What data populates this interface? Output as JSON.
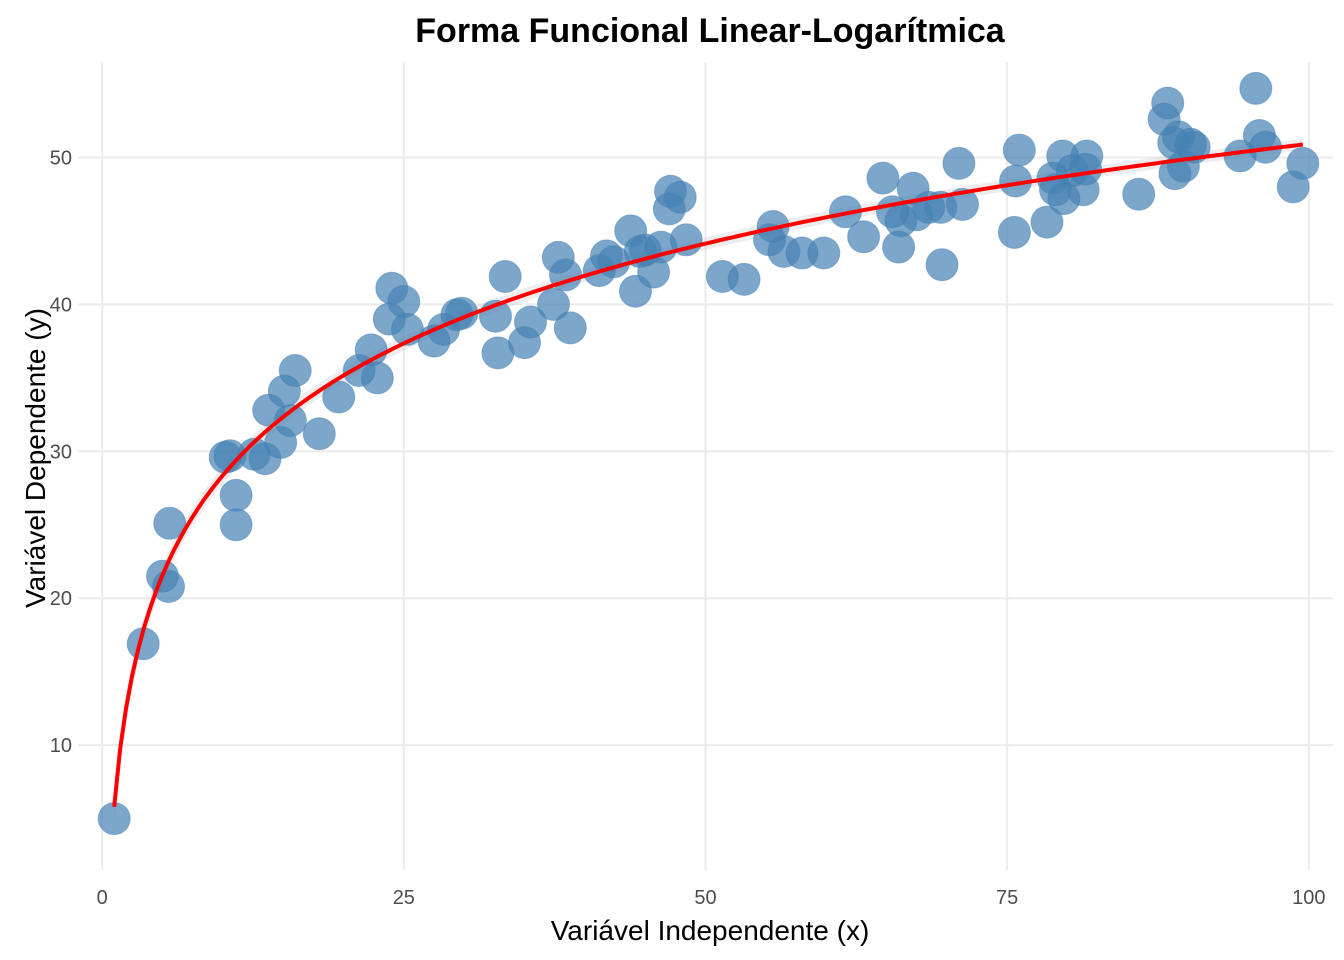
{
  "chart_data": {
    "type": "scatter",
    "title": "Forma Funcional Linear-Logarítmica",
    "xlabel": "Variável Independente (x)",
    "ylabel": "Variável Dependente (y)",
    "xlim": [
      -2,
      102
    ],
    "ylim": [
      1.5,
      56.5
    ],
    "xticks": [
      0,
      25,
      50,
      75,
      100
    ],
    "yticks": [
      10,
      20,
      30,
      40,
      50
    ],
    "grid": true,
    "colors": {
      "points": "#4682b4",
      "fit_line": "#ff0000",
      "band": "#cccccc",
      "grid": "#ebebeb"
    },
    "fit": {
      "type": "log",
      "intercept": 5.8,
      "slope": 9.8
    },
    "points": [
      {
        "x": 1.0,
        "y": 5.0
      },
      {
        "x": 3.4,
        "y": 16.9
      },
      {
        "x": 5.0,
        "y": 21.5
      },
      {
        "x": 5.5,
        "y": 20.8
      },
      {
        "x": 5.6,
        "y": 25.1
      },
      {
        "x": 10.2,
        "y": 29.6
      },
      {
        "x": 10.6,
        "y": 29.7
      },
      {
        "x": 11.1,
        "y": 27.0
      },
      {
        "x": 11.1,
        "y": 25.0
      },
      {
        "x": 12.6,
        "y": 29.8
      },
      {
        "x": 13.5,
        "y": 29.5
      },
      {
        "x": 13.8,
        "y": 32.8
      },
      {
        "x": 14.8,
        "y": 30.6
      },
      {
        "x": 15.1,
        "y": 34.1
      },
      {
        "x": 15.6,
        "y": 32.1
      },
      {
        "x": 16.0,
        "y": 35.5
      },
      {
        "x": 18.0,
        "y": 31.2
      },
      {
        "x": 19.6,
        "y": 33.7
      },
      {
        "x": 21.3,
        "y": 35.5
      },
      {
        "x": 22.3,
        "y": 36.9
      },
      {
        "x": 22.8,
        "y": 35.0
      },
      {
        "x": 23.8,
        "y": 39.0
      },
      {
        "x": 24.0,
        "y": 41.1
      },
      {
        "x": 25.0,
        "y": 40.2
      },
      {
        "x": 25.3,
        "y": 38.3
      },
      {
        "x": 27.5,
        "y": 37.5
      },
      {
        "x": 28.3,
        "y": 38.3
      },
      {
        "x": 29.4,
        "y": 39.3
      },
      {
        "x": 29.8,
        "y": 39.4
      },
      {
        "x": 32.6,
        "y": 39.2
      },
      {
        "x": 32.8,
        "y": 36.7
      },
      {
        "x": 33.4,
        "y": 41.9
      },
      {
        "x": 35.0,
        "y": 37.4
      },
      {
        "x": 35.5,
        "y": 38.8
      },
      {
        "x": 37.4,
        "y": 40.0
      },
      {
        "x": 37.8,
        "y": 43.2
      },
      {
        "x": 38.4,
        "y": 42.0
      },
      {
        "x": 38.8,
        "y": 38.4
      },
      {
        "x": 41.2,
        "y": 42.3
      },
      {
        "x": 41.8,
        "y": 43.3
      },
      {
        "x": 42.4,
        "y": 42.9
      },
      {
        "x": 43.8,
        "y": 45.0
      },
      {
        "x": 44.2,
        "y": 40.9
      },
      {
        "x": 44.6,
        "y": 43.6
      },
      {
        "x": 45.0,
        "y": 43.7
      },
      {
        "x": 45.7,
        "y": 42.2
      },
      {
        "x": 46.3,
        "y": 43.9
      },
      {
        "x": 47.0,
        "y": 46.5
      },
      {
        "x": 47.1,
        "y": 47.7
      },
      {
        "x": 47.9,
        "y": 47.3
      },
      {
        "x": 48.4,
        "y": 44.4
      },
      {
        "x": 51.4,
        "y": 41.9
      },
      {
        "x": 53.2,
        "y": 41.7
      },
      {
        "x": 55.3,
        "y": 44.4
      },
      {
        "x": 55.6,
        "y": 45.3
      },
      {
        "x": 56.5,
        "y": 43.6
      },
      {
        "x": 58.0,
        "y": 43.5
      },
      {
        "x": 59.8,
        "y": 43.5
      },
      {
        "x": 61.6,
        "y": 46.3
      },
      {
        "x": 63.1,
        "y": 44.6
      },
      {
        "x": 64.7,
        "y": 48.6
      },
      {
        "x": 65.5,
        "y": 46.3
      },
      {
        "x": 66.0,
        "y": 43.9
      },
      {
        "x": 66.2,
        "y": 45.7
      },
      {
        "x": 67.2,
        "y": 47.9
      },
      {
        "x": 67.5,
        "y": 46.1
      },
      {
        "x": 68.5,
        "y": 46.6
      },
      {
        "x": 69.5,
        "y": 46.6
      },
      {
        "x": 69.6,
        "y": 42.7
      },
      {
        "x": 71.0,
        "y": 49.6
      },
      {
        "x": 71.3,
        "y": 46.8
      },
      {
        "x": 75.6,
        "y": 44.9
      },
      {
        "x": 75.7,
        "y": 48.4
      },
      {
        "x": 76.0,
        "y": 50.5
      },
      {
        "x": 78.3,
        "y": 45.6
      },
      {
        "x": 78.8,
        "y": 48.6
      },
      {
        "x": 79.0,
        "y": 47.8
      },
      {
        "x": 79.6,
        "y": 50.1
      },
      {
        "x": 79.7,
        "y": 47.2
      },
      {
        "x": 80.4,
        "y": 49.1
      },
      {
        "x": 81.3,
        "y": 47.8
      },
      {
        "x": 81.5,
        "y": 49.2
      },
      {
        "x": 81.6,
        "y": 50.1
      },
      {
        "x": 85.9,
        "y": 47.5
      },
      {
        "x": 88.0,
        "y": 52.6
      },
      {
        "x": 88.3,
        "y": 53.7
      },
      {
        "x": 88.8,
        "y": 51.0
      },
      {
        "x": 88.9,
        "y": 48.9
      },
      {
        "x": 89.2,
        "y": 51.4
      },
      {
        "x": 89.6,
        "y": 49.4
      },
      {
        "x": 90.2,
        "y": 50.9
      },
      {
        "x": 90.5,
        "y": 50.7
      },
      {
        "x": 94.3,
        "y": 50.1
      },
      {
        "x": 95.6,
        "y": 54.7
      },
      {
        "x": 95.9,
        "y": 51.5
      },
      {
        "x": 96.4,
        "y": 50.7
      },
      {
        "x": 98.7,
        "y": 48.0
      },
      {
        "x": 99.5,
        "y": 49.6
      }
    ]
  }
}
